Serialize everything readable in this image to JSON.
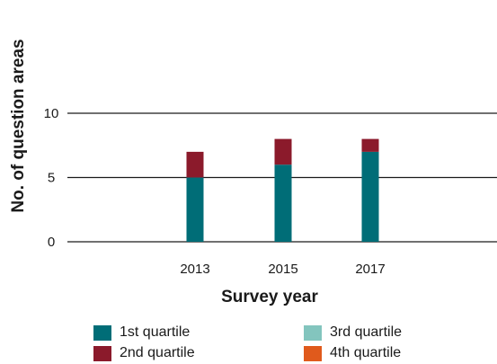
{
  "chart_data": {
    "type": "bar",
    "stacked": true,
    "categories": [
      "2013",
      "2015",
      "2017"
    ],
    "series": [
      {
        "name": "1st quartile",
        "values": [
          5,
          6,
          7
        ],
        "color": "#006d77"
      },
      {
        "name": "2nd quartile",
        "values": [
          2,
          2,
          1
        ],
        "color": "#8b1a2b"
      },
      {
        "name": "3rd quartile",
        "values": [
          0,
          0,
          0
        ],
        "color": "#83c5be"
      },
      {
        "name": "4th quartile",
        "values": [
          0,
          0,
          0
        ],
        "color": "#e05a1c"
      }
    ],
    "xlabel": "Survey year",
    "ylabel": "No. of question areas",
    "ylim": [
      0,
      10
    ],
    "yticks": [
      "0",
      "5",
      "10"
    ],
    "grid": true,
    "legend_position": "bottom"
  }
}
